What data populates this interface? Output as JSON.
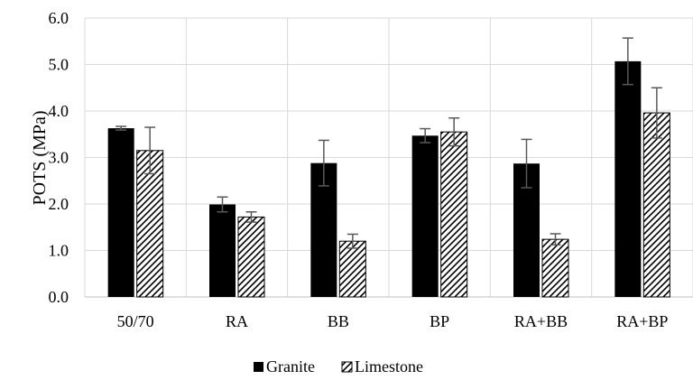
{
  "chart_data": {
    "type": "bar",
    "title": "",
    "xlabel": "",
    "ylabel": "POTS (MPa)",
    "ylim": [
      0,
      6
    ],
    "yticks": [
      "0.0",
      "1.0",
      "2.0",
      "3.0",
      "4.0",
      "5.0",
      "6.0"
    ],
    "categories": [
      "50/70",
      "RA",
      "BB",
      "BP",
      "RA+BB",
      "RA+BP"
    ],
    "series": [
      {
        "name": "Granite",
        "values": [
          3.63,
          1.99,
          2.88,
          3.47,
          2.87,
          5.07
        ],
        "errors": [
          0.04,
          0.16,
          0.49,
          0.15,
          0.52,
          0.5
        ]
      },
      {
        "name": "Limestone",
        "values": [
          3.15,
          1.72,
          1.2,
          3.55,
          1.24,
          3.96
        ],
        "errors": [
          0.5,
          0.11,
          0.15,
          0.3,
          0.12,
          0.54
        ]
      }
    ],
    "grid": true,
    "legend_position": "bottom"
  },
  "colors": {
    "granite_fill": "#000000",
    "limestone_fill": "pattern-diagonal-hatch",
    "grid": "#d9d9d9",
    "error_bar": "#595959"
  }
}
